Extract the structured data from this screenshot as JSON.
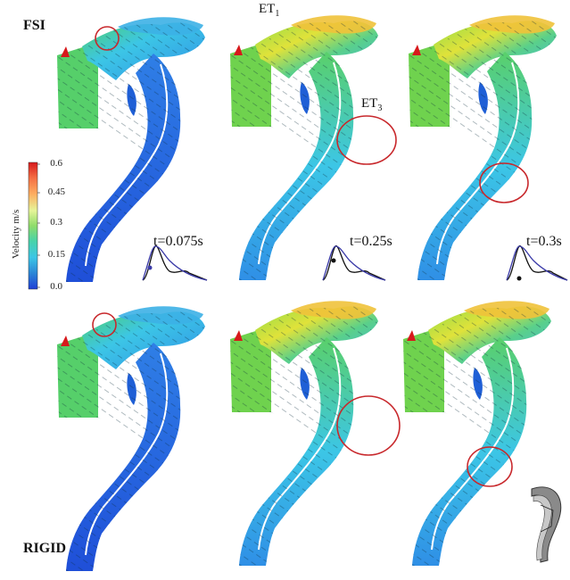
{
  "labels": {
    "fsi": "FSI",
    "rigid": "RIGID",
    "et1_main": "ET",
    "et1_sub": "1",
    "et3_main": "ET",
    "et3_sub": "3"
  },
  "colorbar": {
    "title": "Velocity m/s",
    "ticks": [
      "0.6",
      "0.45",
      "0.3",
      "0.15",
      "0.0"
    ],
    "colors": [
      "#d7191c",
      "#f46d43",
      "#fdae61",
      "#fee08b",
      "#e6f598",
      "#abdda4",
      "#66c2a5",
      "#3ec7e0",
      "#2b83ba",
      "#1f3fd6"
    ]
  },
  "time_points": [
    "t=0.075s",
    "t=0.25s",
    "t=0.3s"
  ],
  "colors": {
    "circle": "#c8282c",
    "waveform_blue": "#3a3aa8",
    "waveform_black": "#111111",
    "flow_blue": "#2f8fe6",
    "flow_dark": "#1f4fd8",
    "flow_cyan": "#3cc6e6",
    "flow_green": "#7ad64a",
    "flow_yellow": "#e8e032"
  }
}
